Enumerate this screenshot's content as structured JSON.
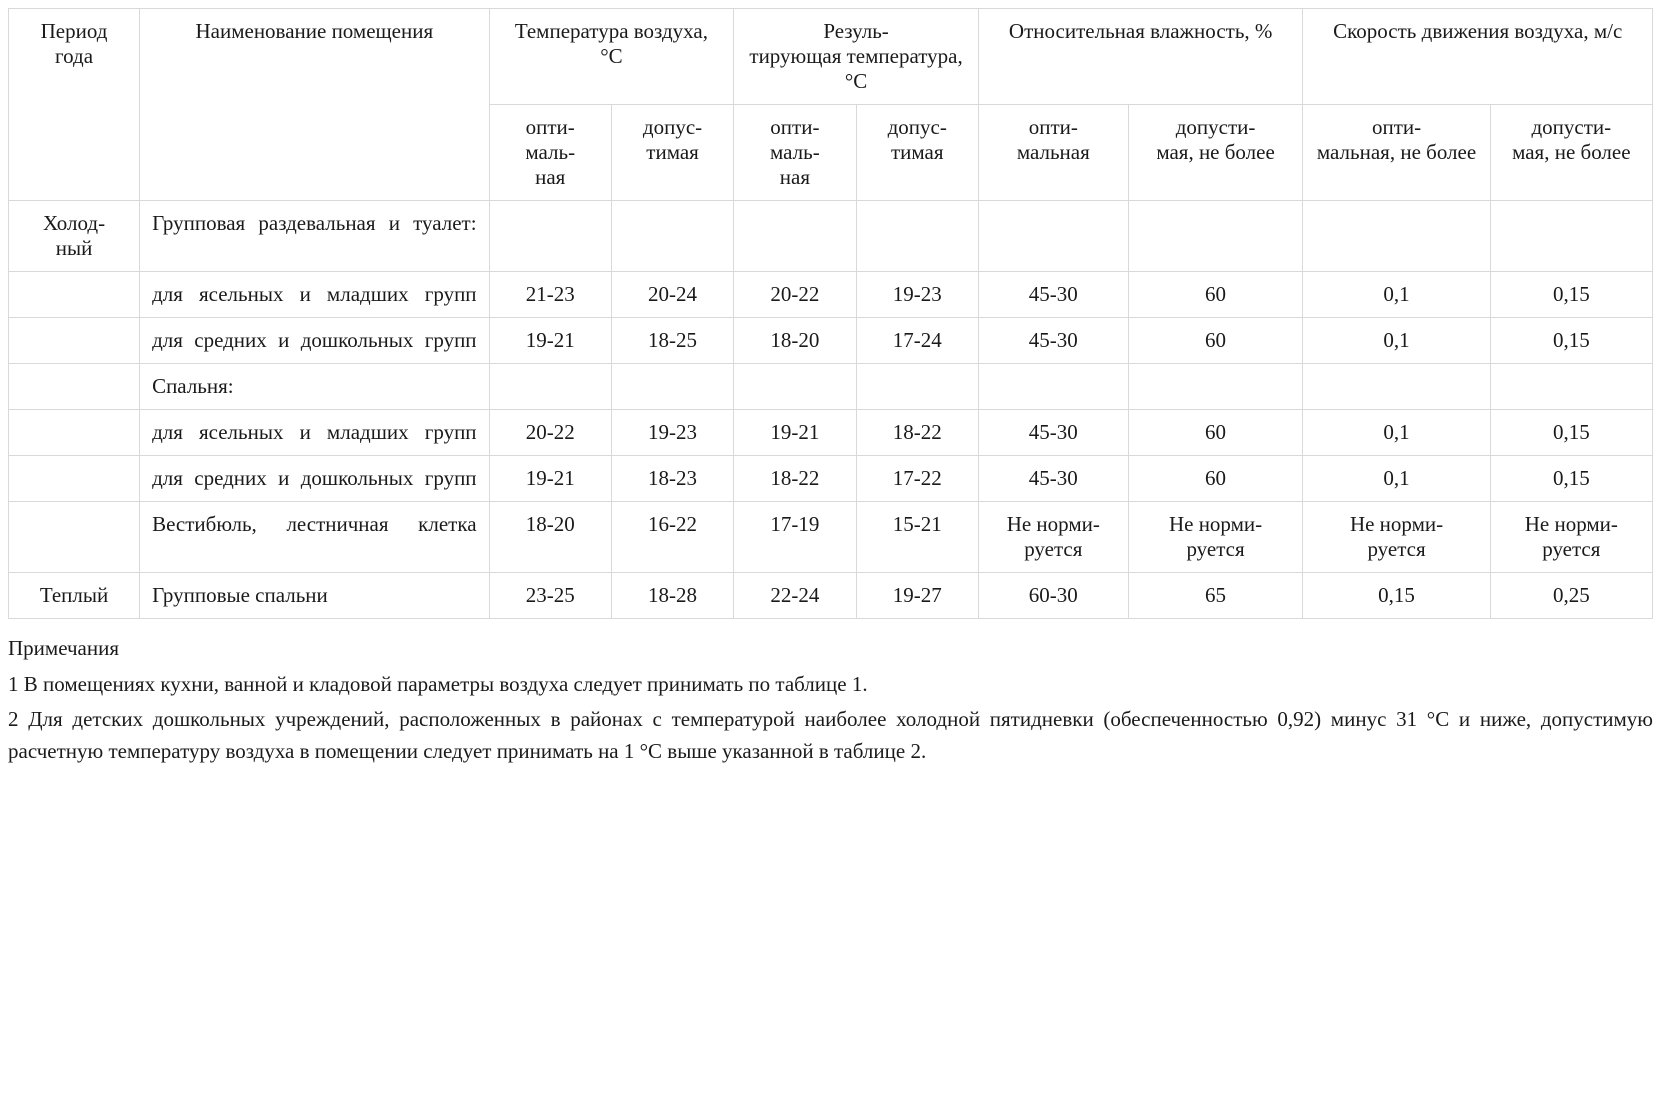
{
  "colors": {
    "text": "#1a1a1a",
    "border": "#d9d9d9",
    "background": "#ffffff"
  },
  "typography": {
    "font_family": "Times New Roman",
    "font_size_pt": 16
  },
  "header": {
    "period": "Период года",
    "room": "Наименование помещения",
    "temp_air": "Температура воздуха, °C",
    "temp_result": "Резуль-\nтирующая температура, °C",
    "humidity": "Относительная влажность, %",
    "air_speed": "Скорость движения воздуха, м/с",
    "sub": {
      "opt_short": "опти-\nмаль-\nная",
      "perm_short": "допус-\nтимая",
      "opt_hum": "опти-\nмальная",
      "perm_hum": "допусти-\nмая, не более",
      "opt_spd": "опти-\nмальная, не более",
      "perm_spd": "допусти-\nмая, не более"
    }
  },
  "rows": [
    {
      "period": "Холод-\nный",
      "room": "Групповая раздевальная и туалет:",
      "t1": "",
      "t2": "",
      "r1": "",
      "r2": "",
      "h1": "",
      "h2": "",
      "s1": "",
      "s2": ""
    },
    {
      "period": "",
      "room": "для ясельных и младших групп",
      "t1": "21-23",
      "t2": "20-24",
      "r1": "20-22",
      "r2": "19-23",
      "h1": "45-30",
      "h2": "60",
      "s1": "0,1",
      "s2": "0,15"
    },
    {
      "period": "",
      "room": "для средних и дошкольных групп",
      "t1": "19-21",
      "t2": "18-25",
      "r1": "18-20",
      "r2": "17-24",
      "h1": "45-30",
      "h2": "60",
      "s1": "0,1",
      "s2": "0,15"
    },
    {
      "period": "",
      "room": "Спальня:",
      "t1": "",
      "t2": "",
      "r1": "",
      "r2": "",
      "h1": "",
      "h2": "",
      "s1": "",
      "s2": ""
    },
    {
      "period": "",
      "room": "для ясельных и младших групп",
      "t1": "20-22",
      "t2": "19-23",
      "r1": "19-21",
      "r2": "18-22",
      "h1": "45-30",
      "h2": "60",
      "s1": "0,1",
      "s2": "0,15"
    },
    {
      "period": "",
      "room": "для средних и дошкольных групп",
      "t1": "19-21",
      "t2": "18-23",
      "r1": "18-22",
      "r2": "17-22",
      "h1": "45-30",
      "h2": "60",
      "s1": "0,1",
      "s2": "0,15"
    },
    {
      "period": "",
      "room": "Вестибюль, лестничная клетка",
      "t1": "18-20",
      "t2": "16-22",
      "r1": "17-19",
      "r2": "15-21",
      "h1": "Не норми-\nруется",
      "h2": "Не норми-\nруется",
      "s1": "Не норми-\nруется",
      "s2": "Не норми-\nруется"
    },
    {
      "period": "Теплый",
      "room": "Групповые спальни",
      "t1": "23-25",
      "t2": "18-28",
      "r1": "22-24",
      "r2": "19-27",
      "h1": "60-30",
      "h2": "65",
      "s1": "0,15",
      "s2": "0,25"
    }
  ],
  "notes": {
    "title": "Примечания",
    "items": [
      "1 В помещениях кухни, ванной и кладовой параметры воздуха следует принимать по таблице 1.",
      "2 Для детских дошкольных учреждений, расположенных в районах с температурой наиболее холодной пятидневки (обеспеченностью 0,92) минус 31 °C и ниже, допустимую расчетную температуру воздуха в помещении следует принимать на 1 °C выше указанной в таблице 2."
    ]
  }
}
